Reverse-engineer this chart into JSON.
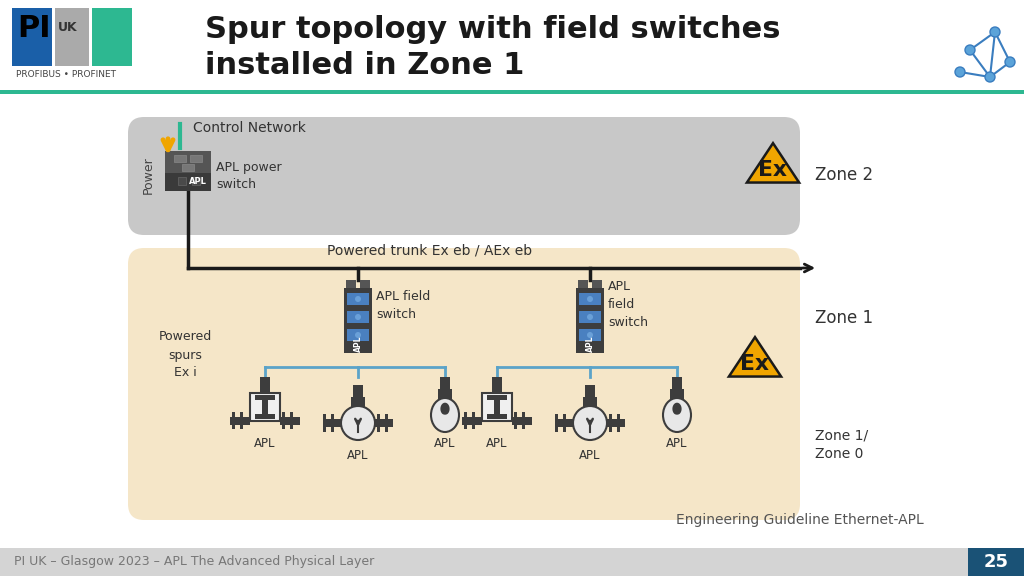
{
  "title": "Spur topology with field switches\ninstalled in Zone 1",
  "title_fontsize": 22,
  "title_fontweight": "bold",
  "bg_color": "#ffffff",
  "header_line_color": "#2db891",
  "footer_bg": "#d4d4d4",
  "footer_text": "PI UK – Glasgow 2023 – APL The Advanced Physical Layer",
  "footer_page": "25",
  "footer_page_bg": "#1a5276",
  "eng_guideline_text": "Engineering Guideline Ethernet-APL",
  "zone2_bg": "#c8c8c8",
  "zone1_bg": "#f5e6c8",
  "zone2_label": "Zone 2",
  "zone1_label": "Zone 1",
  "zone10_label": "Zone 1/\nZone 0",
  "control_network_label": "Control Network",
  "apl_power_switch_label": "APL power\nswitch",
  "powered_trunk_label": "Powered trunk Ex eb / AEx eb",
  "apl_field_switch_label1": "APL field\nswitch",
  "apl_field_switch_label2": "APL\nfield\nswitch",
  "powered_spurs_label": "Powered\nspurs\nEx i",
  "power_label": "Power",
  "device_color": "#4a4a4a",
  "trunk_line_color": "#1a1a1a",
  "spur_line_color": "#5ba3c9",
  "arrow_color": "#1a1a1a",
  "power_arrow_color": "#f0a500",
  "green_connector_color": "#2db891",
  "logo_blue": "#1a5fa8",
  "logo_gray": "#aaaaaa",
  "logo_green": "#2db891"
}
